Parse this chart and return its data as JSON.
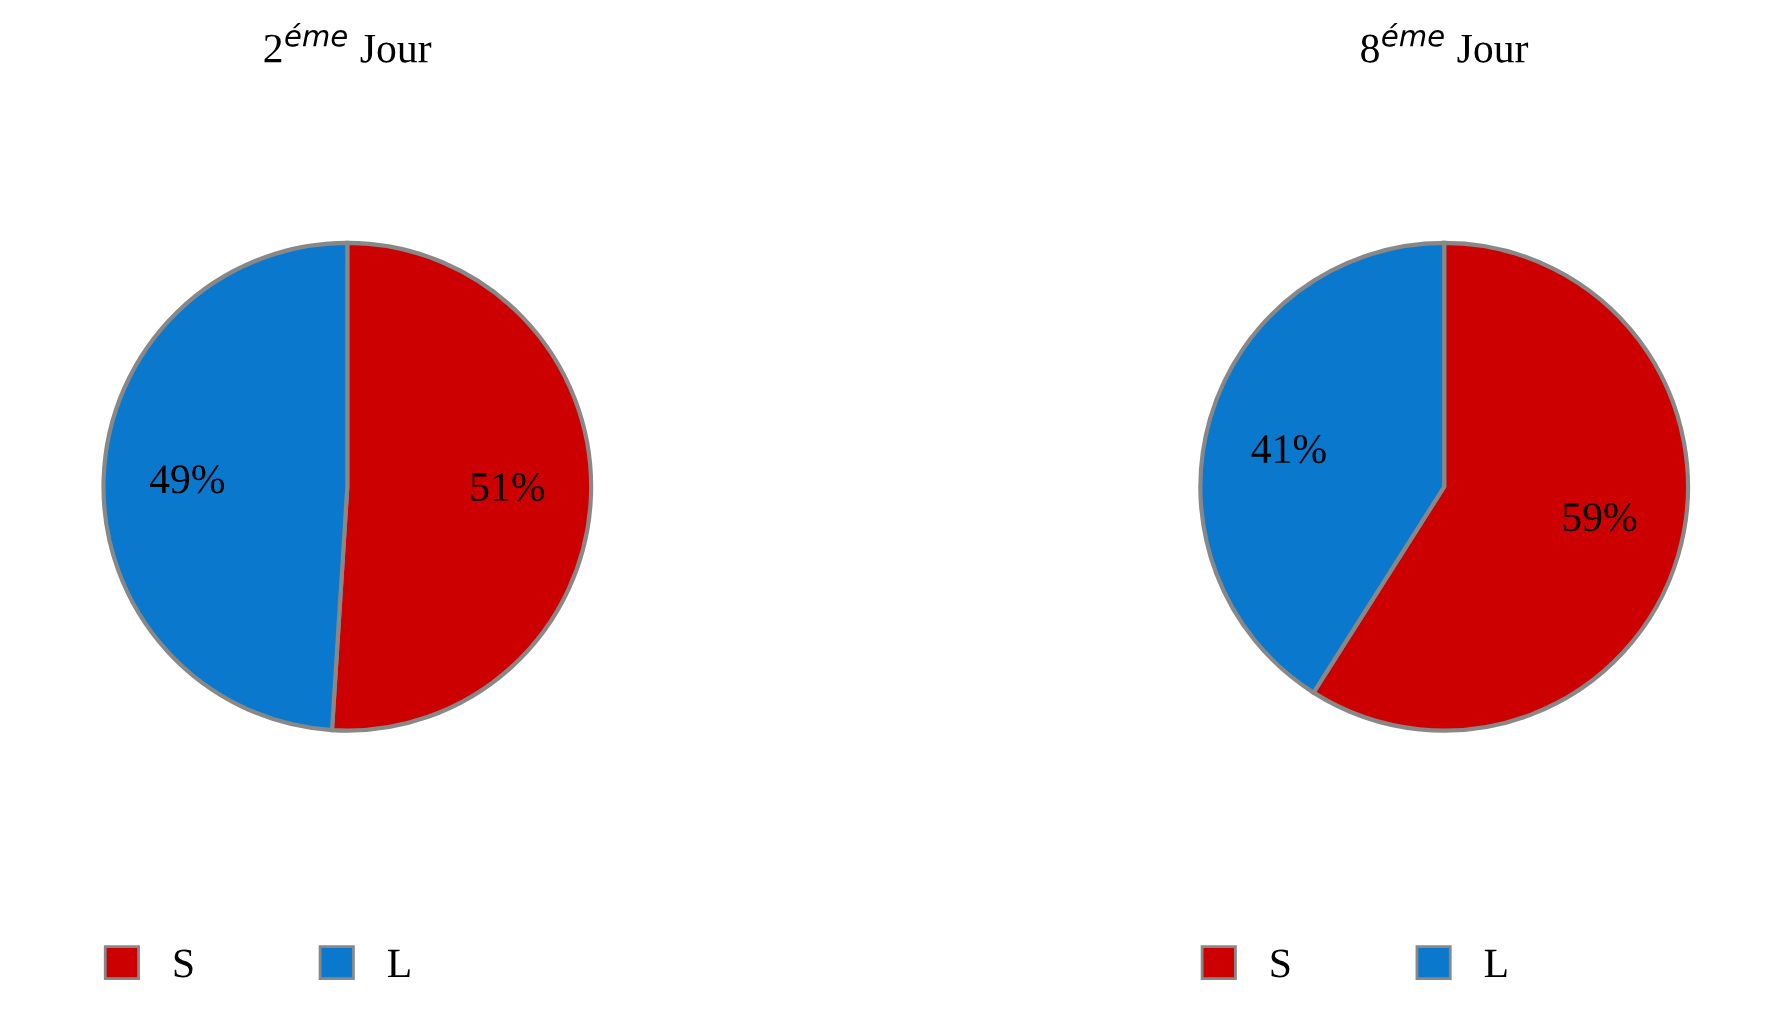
{
  "chart_data": [
    {
      "type": "pie",
      "title": "2$^{éme}$ Jour",
      "categories": [
        "S",
        "L"
      ],
      "values": [
        51,
        49
      ],
      "colors": [
        "#cc0000",
        "#0a78cc"
      ],
      "value_labels": [
        "51%",
        "49%"
      ],
      "legend": "bottom"
    },
    {
      "type": "pie",
      "title": "8$^{éme}$ Jour",
      "categories": [
        "S",
        "L"
      ],
      "values": [
        59,
        41
      ],
      "colors": [
        "#cc0000",
        "#0a78cc"
      ],
      "value_labels": [
        "59%",
        "41%"
      ],
      "legend": "bottom"
    }
  ]
}
